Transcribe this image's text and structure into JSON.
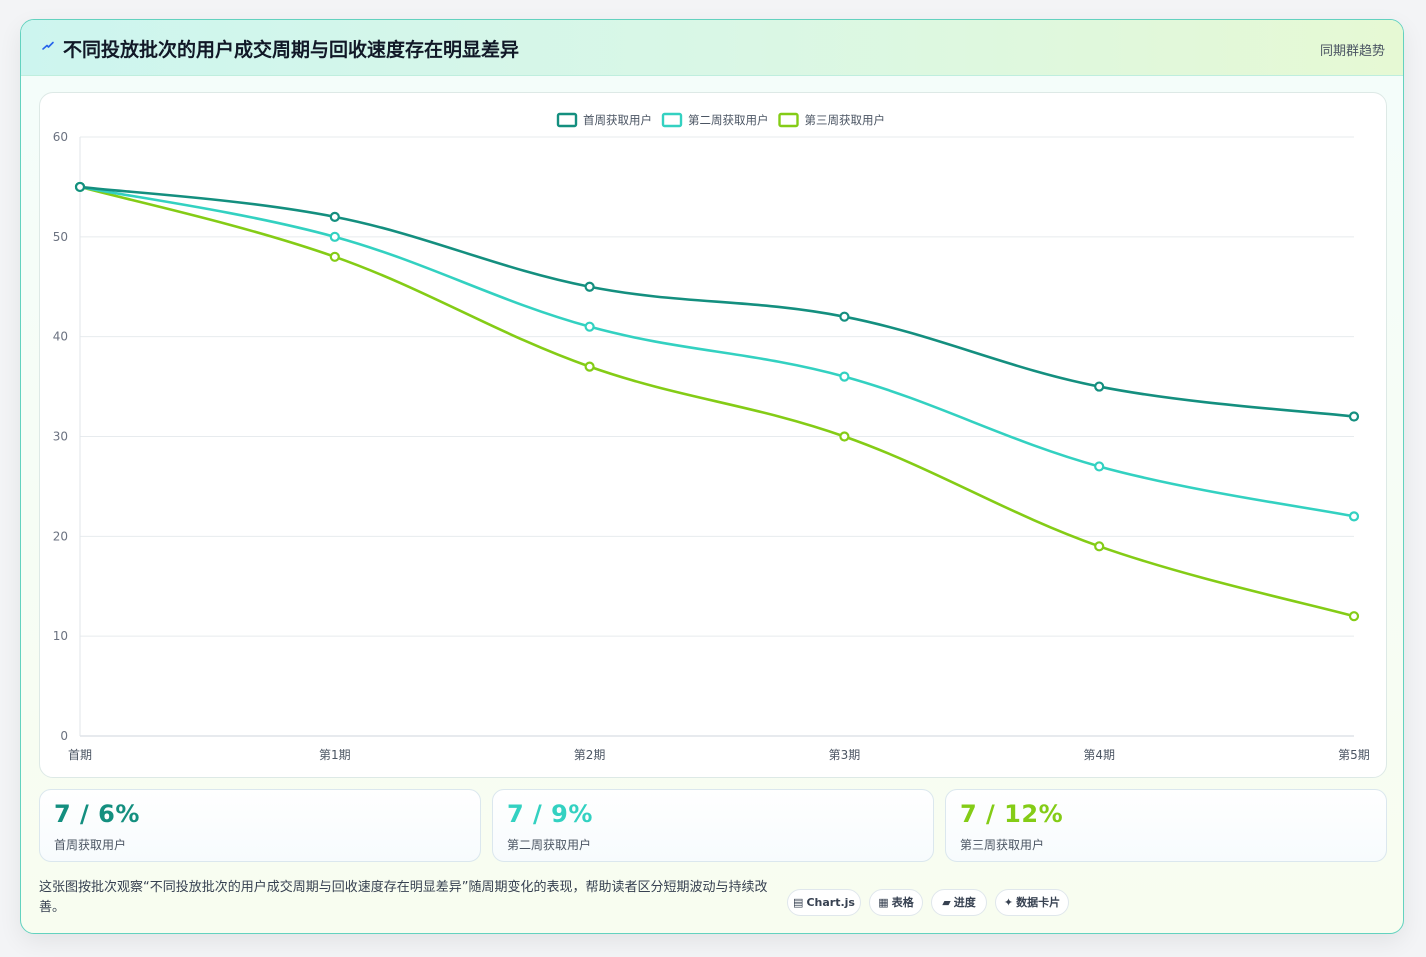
{
  "header": {
    "title": "不同投放批次的用户成交周期与回收速度存在明显差异",
    "icon": "lightning-icon",
    "tag": "同期群趋势"
  },
  "chart_data": {
    "type": "line",
    "categories": [
      "首期",
      "第1期",
      "第2期",
      "第3期",
      "第4期",
      "第5期"
    ],
    "series": [
      {
        "name": "首周获取用户",
        "values": [
          55,
          52,
          45,
          42,
          35,
          32
        ],
        "color": "#148f7f"
      },
      {
        "name": "第二周获取用户",
        "values": [
          55,
          50,
          41,
          36,
          27,
          22
        ],
        "color": "#33d1c1"
      },
      {
        "name": "第三周获取用户",
        "values": [
          55,
          48,
          37,
          30,
          19,
          12
        ],
        "color": "#84cc16"
      }
    ],
    "ylim": [
      0,
      60
    ],
    "yticks": [
      0,
      10,
      20,
      30,
      40,
      50,
      60
    ],
    "grid": true,
    "legend": "top-center",
    "smooth": true
  },
  "stats": [
    {
      "value": "7 / 6%",
      "label": "首周获取用户",
      "color": "#148f7f"
    },
    {
      "value": "7 / 9%",
      "label": "第二周获取用户",
      "color": "#33d1c1"
    },
    {
      "value": "7 / 12%",
      "label": "第三周获取用户",
      "color": "#84cc16"
    }
  ],
  "footer": {
    "description": "这张图按批次观察“不同投放批次的用户成交周期与回收速度存在明显差异”随周期变化的表现，帮助读者区分短期波动与持续改善。",
    "pills": [
      {
        "icon": "▤",
        "label": "Chart.js",
        "icon_name": "chart-icon"
      },
      {
        "icon": "▦",
        "label": "表格",
        "icon_name": "table-icon"
      },
      {
        "icon": "▰",
        "label": "进度",
        "icon_name": "progress-icon"
      },
      {
        "icon": "✦",
        "label": "数据卡片",
        "icon_name": "sparkle-icon"
      }
    ]
  }
}
